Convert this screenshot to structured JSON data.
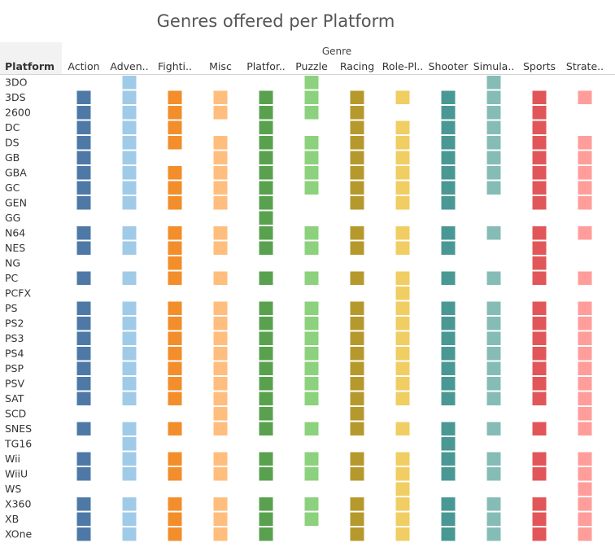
{
  "chart_data": {
    "type": "heatmap",
    "title": "Genres offered per Platform",
    "column_group_label": "Genre",
    "row_header": "Platform",
    "columns": [
      {
        "label": "Action",
        "color": "#4e79a7"
      },
      {
        "label": "Adven..",
        "color": "#a0cbe8"
      },
      {
        "label": "Fighti..",
        "color": "#f28e2b"
      },
      {
        "label": "Misc",
        "color": "#ffbe7d"
      },
      {
        "label": "Platfor..",
        "color": "#59a14f"
      },
      {
        "label": "Puzzle",
        "color": "#8cd17d"
      },
      {
        "label": "Racing",
        "color": "#b6992d"
      },
      {
        "label": "Role-Pl..",
        "color": "#f1ce63"
      },
      {
        "label": "Shooter",
        "color": "#499894"
      },
      {
        "label": "Simula..",
        "color": "#86bcb6"
      },
      {
        "label": "Sports",
        "color": "#e15759"
      },
      {
        "label": "Strate..",
        "color": "#ff9d9a"
      }
    ],
    "rows": [
      {
        "platform": "3DO",
        "genres": [
          0,
          1,
          0,
          0,
          0,
          1,
          0,
          0,
          0,
          1,
          0,
          0
        ]
      },
      {
        "platform": "3DS",
        "genres": [
          1,
          1,
          1,
          1,
          1,
          1,
          1,
          1,
          1,
          1,
          1,
          1
        ]
      },
      {
        "platform": "2600",
        "genres": [
          1,
          1,
          1,
          1,
          1,
          1,
          1,
          0,
          1,
          1,
          1,
          0
        ]
      },
      {
        "platform": "DC",
        "genres": [
          1,
          1,
          1,
          0,
          1,
          0,
          1,
          1,
          1,
          1,
          1,
          0
        ]
      },
      {
        "platform": "DS",
        "genres": [
          1,
          1,
          1,
          1,
          1,
          1,
          1,
          1,
          1,
          1,
          1,
          1
        ]
      },
      {
        "platform": "GB",
        "genres": [
          1,
          1,
          0,
          1,
          1,
          1,
          1,
          1,
          1,
          1,
          1,
          1
        ]
      },
      {
        "platform": "GBA",
        "genres": [
          1,
          1,
          1,
          1,
          1,
          1,
          1,
          1,
          1,
          1,
          1,
          1
        ]
      },
      {
        "platform": "GC",
        "genres": [
          1,
          1,
          1,
          1,
          1,
          1,
          1,
          1,
          1,
          1,
          1,
          1
        ]
      },
      {
        "platform": "GEN",
        "genres": [
          1,
          1,
          1,
          1,
          1,
          0,
          1,
          1,
          1,
          0,
          1,
          1
        ]
      },
      {
        "platform": "GG",
        "genres": [
          0,
          0,
          0,
          0,
          1,
          0,
          0,
          0,
          0,
          0,
          0,
          0
        ]
      },
      {
        "platform": "N64",
        "genres": [
          1,
          1,
          1,
          1,
          1,
          1,
          1,
          1,
          1,
          1,
          1,
          1
        ]
      },
      {
        "platform": "NES",
        "genres": [
          1,
          1,
          1,
          1,
          1,
          1,
          1,
          1,
          1,
          0,
          1,
          0
        ]
      },
      {
        "platform": "NG",
        "genres": [
          0,
          0,
          1,
          0,
          0,
          0,
          0,
          0,
          0,
          0,
          1,
          0
        ]
      },
      {
        "platform": "PC",
        "genres": [
          1,
          1,
          1,
          1,
          1,
          1,
          1,
          1,
          1,
          1,
          1,
          1
        ]
      },
      {
        "platform": "PCFX",
        "genres": [
          0,
          0,
          0,
          0,
          0,
          0,
          0,
          1,
          0,
          0,
          0,
          0
        ]
      },
      {
        "platform": "PS",
        "genres": [
          1,
          1,
          1,
          1,
          1,
          1,
          1,
          1,
          1,
          1,
          1,
          1
        ]
      },
      {
        "platform": "PS2",
        "genres": [
          1,
          1,
          1,
          1,
          1,
          1,
          1,
          1,
          1,
          1,
          1,
          1
        ]
      },
      {
        "platform": "PS3",
        "genres": [
          1,
          1,
          1,
          1,
          1,
          1,
          1,
          1,
          1,
          1,
          1,
          1
        ]
      },
      {
        "platform": "PS4",
        "genres": [
          1,
          1,
          1,
          1,
          1,
          1,
          1,
          1,
          1,
          1,
          1,
          1
        ]
      },
      {
        "platform": "PSP",
        "genres": [
          1,
          1,
          1,
          1,
          1,
          1,
          1,
          1,
          1,
          1,
          1,
          1
        ]
      },
      {
        "platform": "PSV",
        "genres": [
          1,
          1,
          1,
          1,
          1,
          1,
          1,
          1,
          1,
          1,
          1,
          1
        ]
      },
      {
        "platform": "SAT",
        "genres": [
          1,
          1,
          1,
          1,
          1,
          1,
          1,
          1,
          1,
          1,
          1,
          1
        ]
      },
      {
        "platform": "SCD",
        "genres": [
          0,
          0,
          0,
          1,
          1,
          0,
          1,
          0,
          0,
          0,
          0,
          1
        ]
      },
      {
        "platform": "SNES",
        "genres": [
          1,
          1,
          1,
          1,
          1,
          1,
          1,
          1,
          1,
          1,
          1,
          1
        ]
      },
      {
        "platform": "TG16",
        "genres": [
          0,
          1,
          0,
          0,
          0,
          0,
          0,
          0,
          1,
          0,
          0,
          0
        ]
      },
      {
        "platform": "Wii",
        "genres": [
          1,
          1,
          1,
          1,
          1,
          1,
          1,
          1,
          1,
          1,
          1,
          1
        ]
      },
      {
        "platform": "WiiU",
        "genres": [
          1,
          1,
          1,
          1,
          1,
          1,
          1,
          1,
          1,
          1,
          1,
          1
        ]
      },
      {
        "platform": "WS",
        "genres": [
          0,
          0,
          0,
          0,
          0,
          0,
          0,
          1,
          0,
          0,
          0,
          1
        ]
      },
      {
        "platform": "X360",
        "genres": [
          1,
          1,
          1,
          1,
          1,
          1,
          1,
          1,
          1,
          1,
          1,
          1
        ]
      },
      {
        "platform": "XB",
        "genres": [
          1,
          1,
          1,
          1,
          1,
          1,
          1,
          1,
          1,
          1,
          1,
          1
        ]
      },
      {
        "platform": "XOne",
        "genres": [
          1,
          1,
          1,
          1,
          1,
          0,
          1,
          1,
          1,
          1,
          1,
          1
        ]
      }
    ]
  }
}
